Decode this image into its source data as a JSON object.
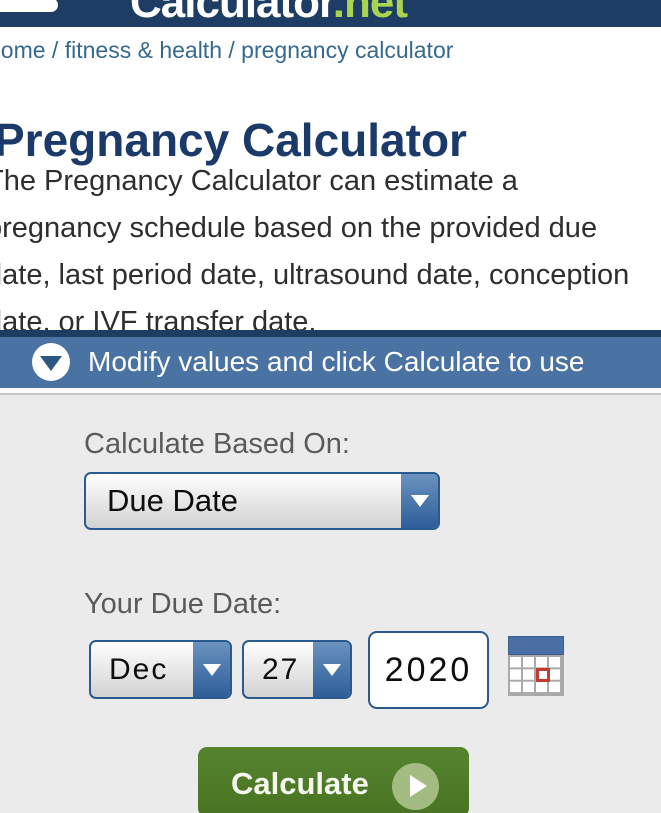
{
  "app": {
    "logo_primary": "Calculator",
    "logo_suffix": ".net"
  },
  "breadcrumb": {
    "separator": " / ",
    "items": [
      "home",
      "fitness & health",
      "pregnancy calculator"
    ]
  },
  "page": {
    "title": "Pregnancy Calculator",
    "description_lines": [
      "The Pregnancy Calculator can estimate a",
      "pregnancy schedule based on the provided due",
      "date, last period date, ultrasound date, conception",
      "date, or IVF transfer date."
    ]
  },
  "panel": {
    "instruction": "Modify values and click Calculate to use"
  },
  "form": {
    "based_on_label": "Calculate Based On:",
    "based_on_value": "Due Date",
    "due_date_label": "Your Due Date:",
    "month_value": "Dec",
    "day_value": "27",
    "year_value": "2020",
    "calculate_label": "Calculate"
  },
  "colors": {
    "header_navy": "#1d3d64",
    "instruction_bar_blue": "#4a72a3",
    "breadcrumb_blue": "#35698e",
    "title_navy": "#1b3a6a",
    "logo_net_green": "#a9d44f",
    "select_border_blue": "#2a5a8e",
    "button_green": "#4e7b28",
    "form_background": "#ebebeb"
  }
}
